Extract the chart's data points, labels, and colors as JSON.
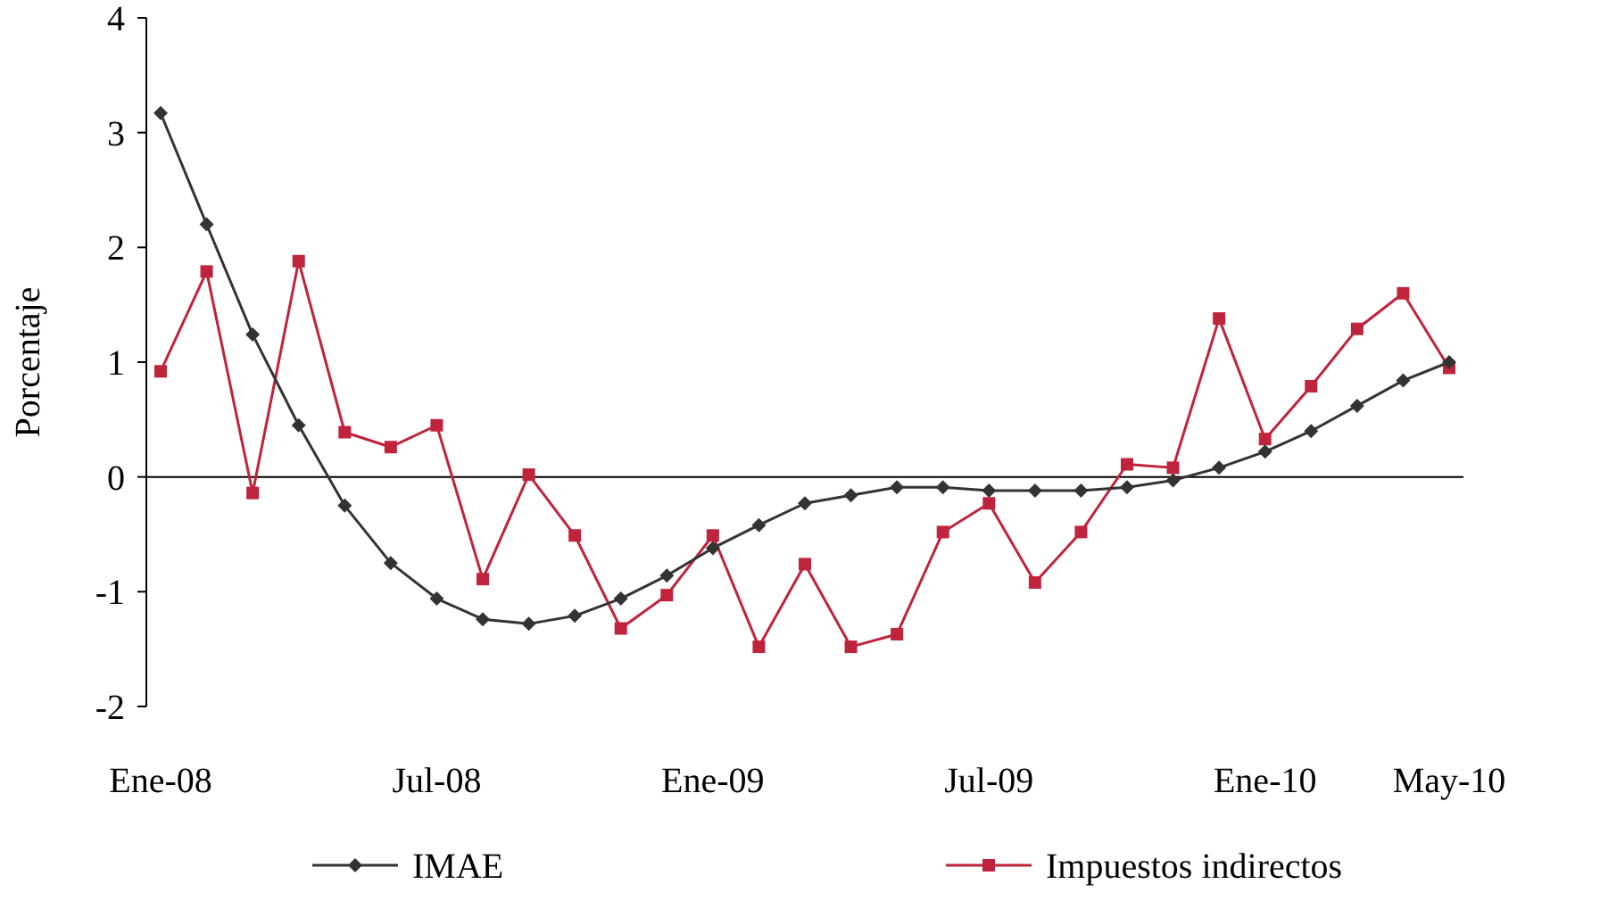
{
  "chart_data": {
    "type": "line",
    "ylabel": "Porcentaje",
    "categories": [
      "Ene-08",
      null,
      null,
      null,
      null,
      null,
      "Jul-08",
      null,
      null,
      null,
      null,
      null,
      "Ene-09",
      null,
      null,
      null,
      null,
      null,
      "Jul-09",
      null,
      null,
      null,
      null,
      null,
      "Ene-10",
      null,
      null,
      null,
      "May-10"
    ],
    "series": [
      {
        "name": "IMAE",
        "color": "#333333",
        "marker": "diamond",
        "values": [
          3.17,
          2.2,
          1.24,
          0.45,
          -0.25,
          -0.75,
          -1.06,
          -1.24,
          -1.28,
          -1.21,
          -1.06,
          -0.86,
          -0.62,
          -0.42,
          -0.23,
          -0.16,
          -0.09,
          -0.09,
          -0.12,
          -0.12,
          -0.12,
          -0.09,
          -0.03,
          0.08,
          0.22,
          0.4,
          0.62,
          0.84,
          1.0
        ]
      },
      {
        "name": "Impuestos indirectos",
        "color": "#c0233c",
        "marker": "square",
        "values": [
          0.92,
          1.79,
          -0.14,
          1.88,
          0.39,
          0.26,
          0.45,
          -0.89,
          0.02,
          -0.51,
          -1.32,
          -1.03,
          -0.51,
          -1.48,
          -0.76,
          -1.48,
          -1.37,
          -0.48,
          -0.23,
          -0.92,
          -0.48,
          0.11,
          0.08,
          1.38,
          0.33,
          0.79,
          1.29,
          1.6,
          0.95
        ]
      }
    ],
    "ylim": [
      -2,
      4
    ],
    "yticks": [
      -2,
      -1,
      0,
      1,
      2,
      3,
      4
    ],
    "ref_lines": [
      {
        "axis": "y",
        "value": 0,
        "color": "#000000"
      }
    ],
    "legend": "bottom",
    "line_style": "solid"
  }
}
